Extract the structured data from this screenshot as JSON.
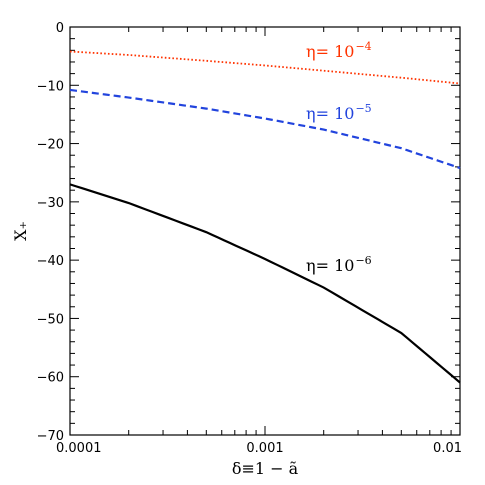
{
  "chart_data": {
    "type": "line",
    "x_scale": "log",
    "xlim": [
      0.0001,
      0.01
    ],
    "ylim": [
      -70,
      0
    ],
    "xlabel": "δ≡1 − ã",
    "ylabel": "X₊",
    "x_ticks": [
      {
        "value": 0.0001,
        "label": "0.0001"
      },
      {
        "value": 0.001,
        "label": "0.001"
      },
      {
        "value": 0.01,
        "label": "0.01"
      }
    ],
    "y_ticks": [
      {
        "value": 0,
        "label": "0"
      },
      {
        "value": -10,
        "label": "−10"
      },
      {
        "value": -20,
        "label": "−20"
      },
      {
        "value": -30,
        "label": "−30"
      },
      {
        "value": -40,
        "label": "−40"
      },
      {
        "value": -50,
        "label": "−50"
      },
      {
        "value": -60,
        "label": "−60"
      },
      {
        "value": -70,
        "label": "−70"
      }
    ],
    "grid": false,
    "series": [
      {
        "name": "η= 10⁻⁴",
        "label_main": "η=  10",
        "label_exp": "−4",
        "color": "#ff3300",
        "style": "dotted",
        "x": [
          0.0001,
          0.0002,
          0.0005,
          0.001,
          0.002,
          0.005,
          0.01
        ],
        "y": [
          -4.2,
          -4.8,
          -5.8,
          -6.6,
          -7.5,
          -8.7,
          -9.7
        ]
      },
      {
        "name": "η= 10⁻⁵",
        "label_main": "η=  10",
        "label_exp": "−5",
        "color": "#2244dd",
        "style": "dashed",
        "x": [
          0.0001,
          0.0002,
          0.0005,
          0.001,
          0.002,
          0.005,
          0.01
        ],
        "y": [
          -10.8,
          -12.1,
          -14.0,
          -15.7,
          -17.6,
          -20.8,
          -24.2
        ]
      },
      {
        "name": "η= 10⁻⁶",
        "label_main": "η=  10",
        "label_exp": "−6",
        "color": "#000000",
        "style": "solid",
        "x": [
          0.0001,
          0.0002,
          0.0005,
          0.001,
          0.002,
          0.005,
          0.01
        ],
        "y": [
          -27.0,
          -30.2,
          -35.2,
          -39.8,
          -44.7,
          -52.5,
          -61.0
        ]
      }
    ]
  }
}
